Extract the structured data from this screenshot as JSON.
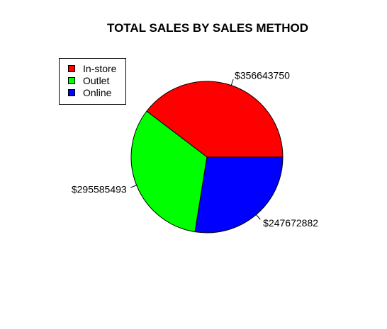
{
  "chart_data": {
    "type": "pie",
    "title": "TOTAL SALES BY SALES METHOD",
    "categories": [
      "In-store",
      "Outlet",
      "Online"
    ],
    "values": [
      356643750,
      295585493,
      247672882
    ],
    "labels": [
      "$356643750",
      "$295585493",
      "$247672882"
    ],
    "colors": [
      "#ff0000",
      "#00ff00",
      "#0000ff"
    ],
    "legend_position": "top-left",
    "start_angle_deg": 0,
    "direction": "counterclockwise"
  }
}
